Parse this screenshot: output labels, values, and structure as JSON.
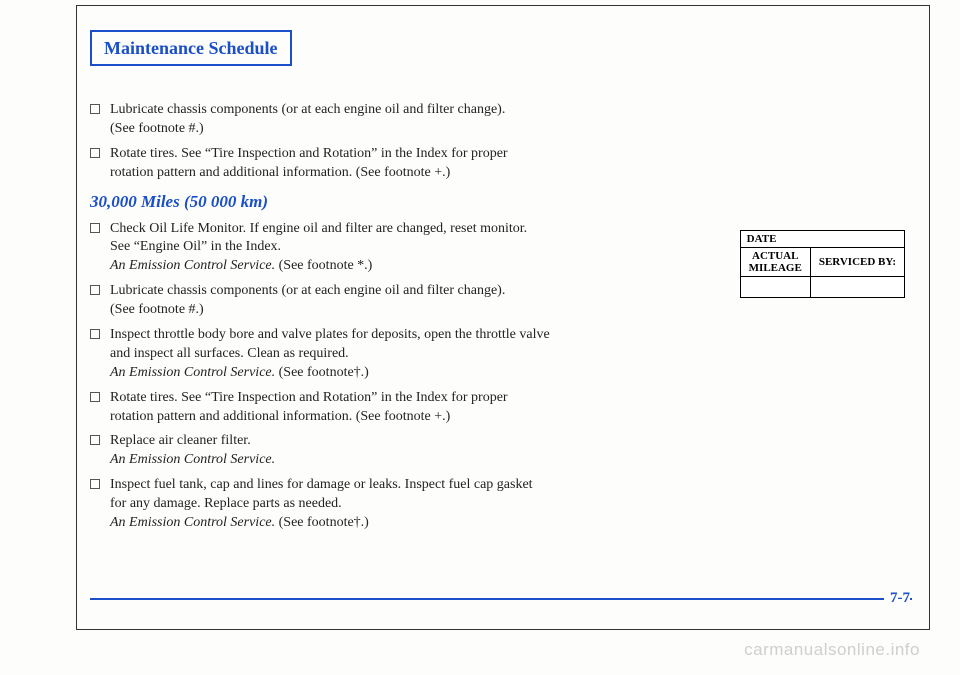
{
  "title": "Maintenance Schedule",
  "pre_items": [
    {
      "lines": [
        "Lubricate chassis components (or at each engine oil and filter change).",
        "(See footnote #.)"
      ]
    },
    {
      "lines": [
        "Rotate tires. See “Tire Inspection and Rotation” in the Index for proper",
        "rotation pattern and additional information. (See footnote +.)"
      ]
    }
  ],
  "milestone": "30,000 Miles (50 000 km)",
  "post_items": [
    {
      "lines": [
        "Check Oil Life Monitor. If engine oil and filter are changed, reset monitor.",
        "See “Engine Oil” in the Index."
      ],
      "tail_italic": "An Emission Control Service. ",
      "tail_plain": "(See footnote *.)"
    },
    {
      "lines": [
        "Lubricate chassis components (or at each engine oil and filter change).",
        "(See footnote #.)"
      ]
    },
    {
      "lines": [
        "Inspect throttle body bore and valve plates for deposits, open the throttle valve",
        "and inspect all surfaces. Clean as required."
      ],
      "tail_italic": "An Emission Control Service. ",
      "tail_plain": "(See footnote†.)"
    },
    {
      "lines": [
        "Rotate tires. See “Tire Inspection and Rotation” in the Index for proper",
        "rotation pattern and additional information. (See footnote +.)"
      ]
    },
    {
      "lines": [
        "Replace air cleaner filter."
      ],
      "tail_italic": "An Emission Control Service."
    },
    {
      "lines": [
        "Inspect fuel tank, cap and lines for damage or leaks. Inspect fuel cap gasket",
        "for any damage. Replace parts as needed."
      ],
      "tail_italic": "An Emission Control Service. ",
      "tail_plain": "(See footnote†.)"
    }
  ],
  "record": {
    "date_label": "DATE",
    "mileage_label": "ACTUAL\nMILEAGE",
    "serviced_label": "SERVICED BY:"
  },
  "page_number": "7-7",
  "watermark": "carmanualsonline.info"
}
